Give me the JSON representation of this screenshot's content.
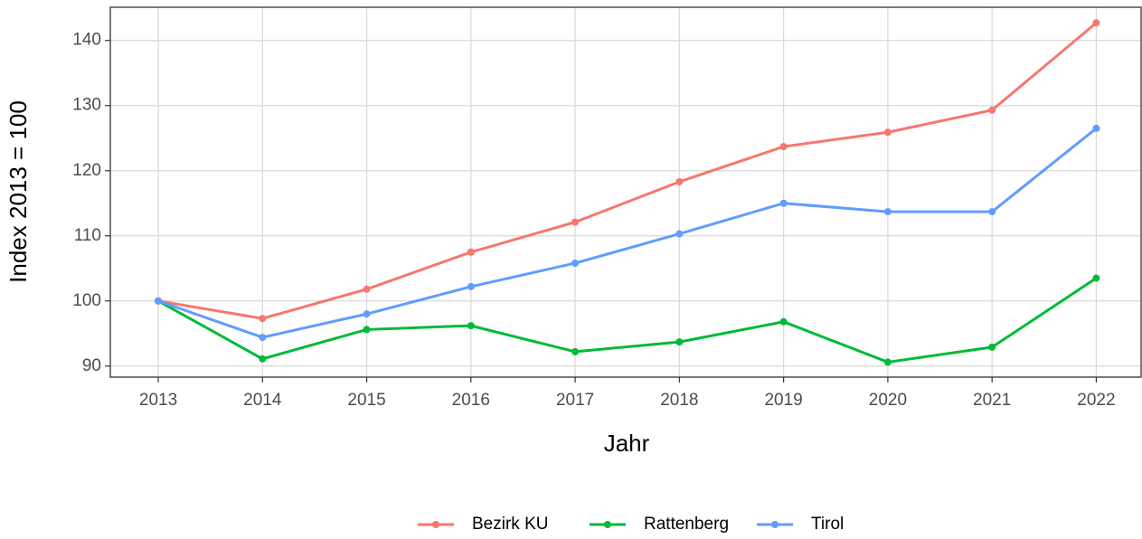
{
  "chart_data": {
    "type": "line",
    "x_label": "Jahr",
    "y_label": "Index  2013  = 100",
    "x": [
      2013,
      2014,
      2015,
      2016,
      2017,
      2018,
      2019,
      2020,
      2021,
      2022
    ],
    "series": [
      {
        "name": "Bezirk KU",
        "color": "#f8766d",
        "values": [
          100,
          97.3,
          101.8,
          107.5,
          112.1,
          118.3,
          123.7,
          125.9,
          129.3,
          142.7
        ]
      },
      {
        "name": "Rattenberg",
        "color": "#00ba38",
        "values": [
          100,
          91.1,
          95.6,
          96.2,
          92.2,
          93.7,
          96.8,
          90.6,
          92.9,
          103.5
        ]
      },
      {
        "name": "Tirol",
        "color": "#619cff",
        "values": [
          100,
          94.4,
          98.0,
          102.2,
          105.8,
          110.3,
          115.0,
          113.7,
          113.7,
          126.5
        ]
      }
    ],
    "xlim": [
      2012.54,
      2022.43
    ],
    "xticks": [
      2013,
      2014,
      2015,
      2016,
      2017,
      2018,
      2019,
      2020,
      2021,
      2022
    ],
    "ylim": [
      88.3,
      145.1
    ],
    "yticks": [
      90,
      100,
      110,
      120,
      130,
      140
    ],
    "grid": true,
    "legend": "bottom"
  }
}
